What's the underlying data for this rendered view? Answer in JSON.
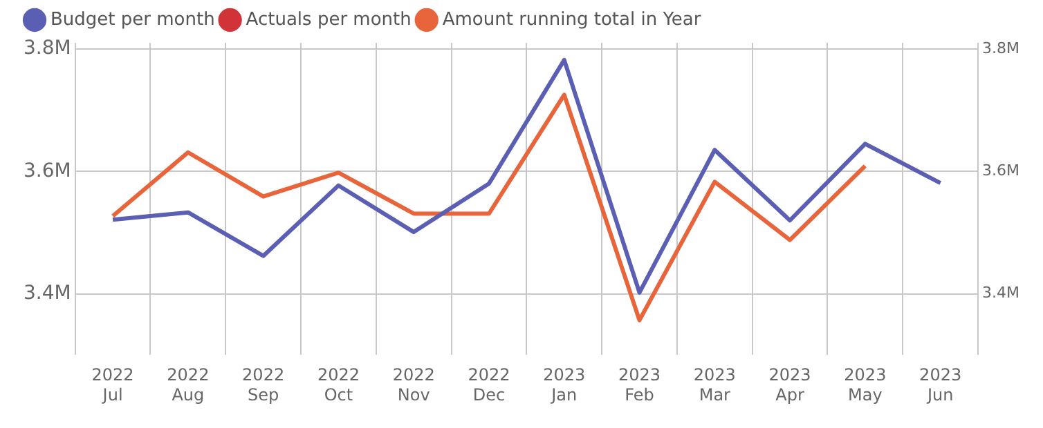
{
  "chart_data": {
    "type": "line",
    "categories": [
      "2022 Jul",
      "2022 Aug",
      "2022 Sep",
      "2022 Oct",
      "2022 Nov",
      "2022 Dec",
      "2023 Jan",
      "2023 Feb",
      "2023 Mar",
      "2023 Apr",
      "2023 May",
      "2023 Jun"
    ],
    "series": [
      {
        "name": "Budget per month",
        "color": "#5b5fb4",
        "values": [
          3.521,
          3.533,
          3.462,
          3.577,
          3.501,
          3.58,
          3.782,
          3.402,
          3.635,
          3.52,
          3.645,
          3.581
        ]
      },
      {
        "name": "Actuals per month",
        "color": "#d13438",
        "values": [
          null,
          null,
          null,
          null,
          null,
          null,
          null,
          null,
          null,
          null,
          null,
          null
        ]
      },
      {
        "name": "Amount running total in Year",
        "color": "#e8643a",
        "values": [
          3.527,
          3.631,
          3.559,
          3.598,
          3.531,
          3.531,
          3.725,
          3.357,
          3.583,
          3.488,
          3.609,
          null
        ]
      }
    ],
    "ylim": [
      3.3,
      3.81
    ],
    "yticks": [
      {
        "value": 3.4,
        "label": "3.4M"
      },
      {
        "value": 3.6,
        "label": "3.6M"
      },
      {
        "value": 3.8,
        "label": "3.8M"
      }
    ],
    "y2lim": [
      3.3,
      3.81
    ],
    "y2ticks": [
      {
        "value": 3.4,
        "label": "3.4M"
      },
      {
        "value": 3.6,
        "label": "3.6M"
      },
      {
        "value": 3.8,
        "label": "3.8M"
      }
    ],
    "grid": true,
    "legend": "top left",
    "marker": "none",
    "line_style": "solid"
  }
}
